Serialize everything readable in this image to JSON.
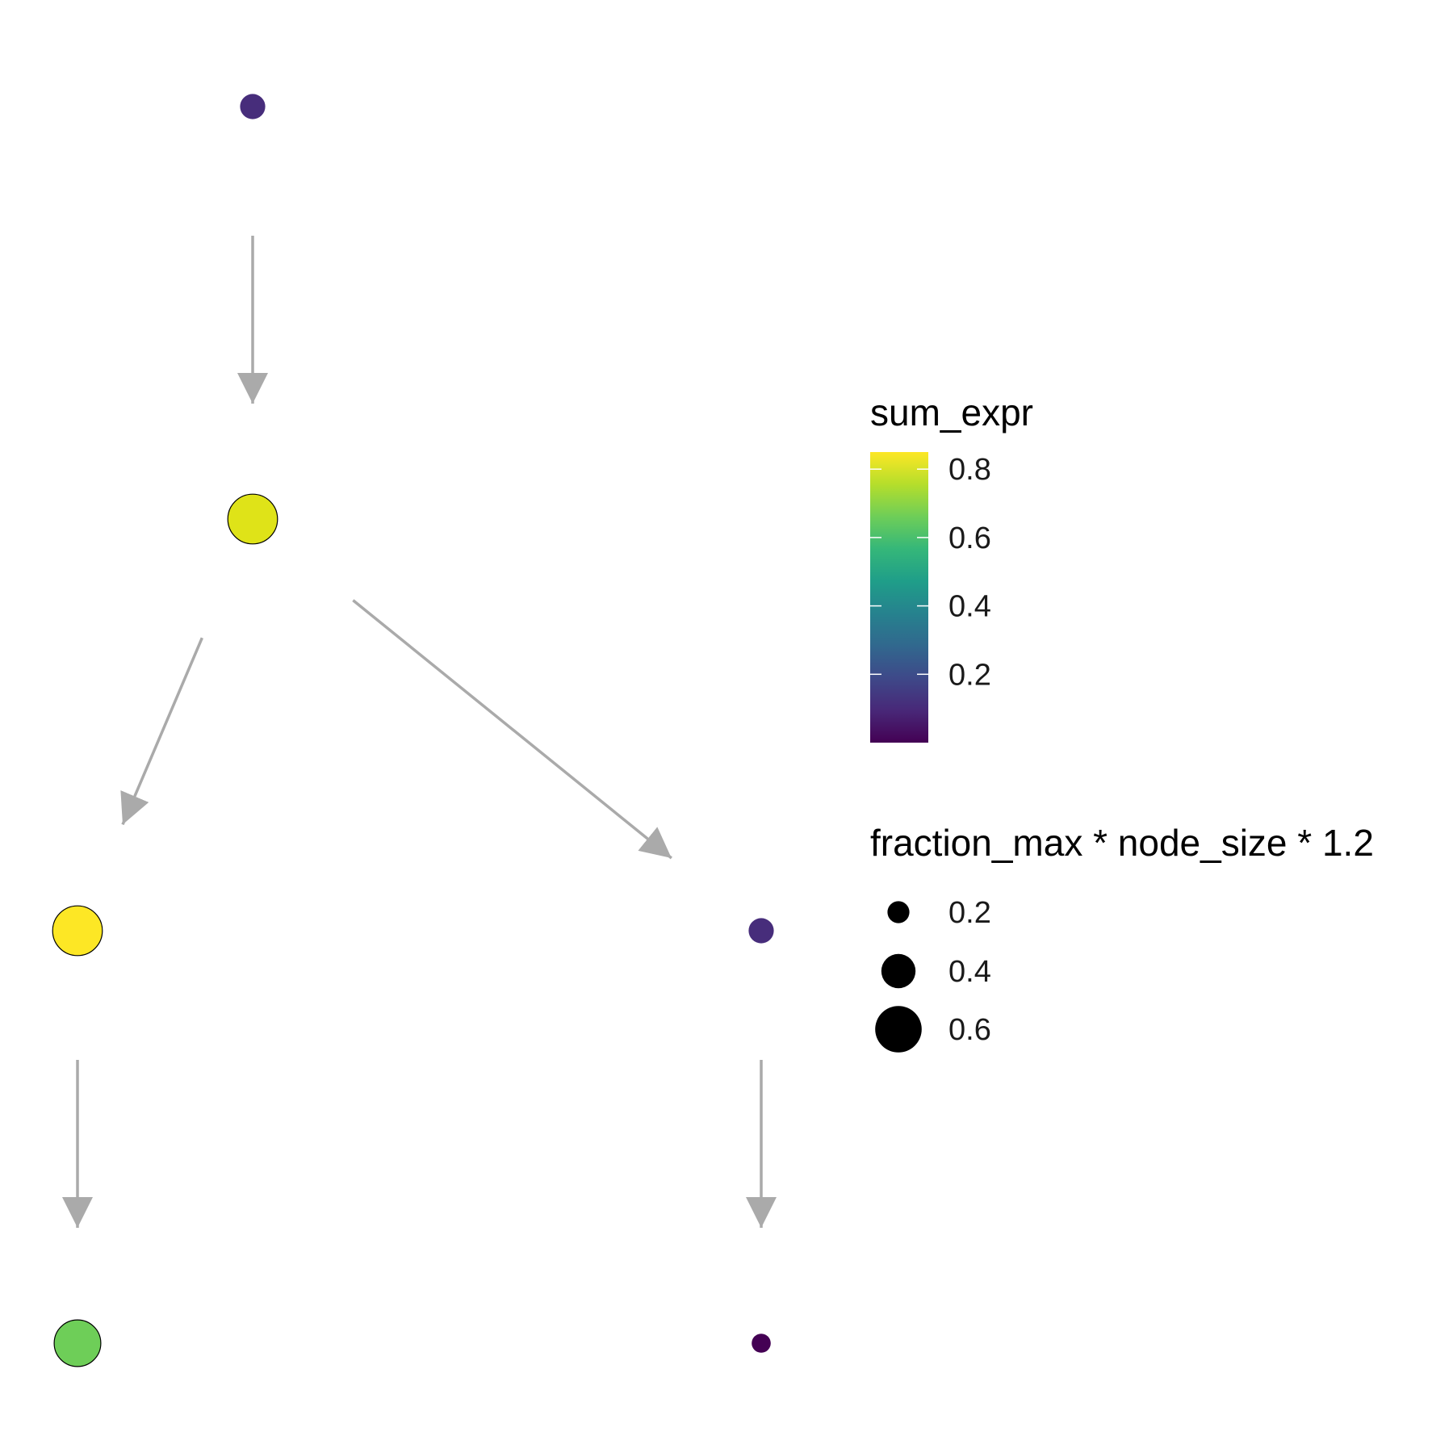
{
  "diagram": {
    "nodes": [
      {
        "id": "n1",
        "fill": "#472d7b",
        "size": 0.2,
        "outlined": false
      },
      {
        "id": "n2",
        "fill": "#dfe318",
        "size": 0.6,
        "outlined": true
      },
      {
        "id": "n3",
        "fill": "#fde725",
        "size": 0.6,
        "outlined": true
      },
      {
        "id": "n4",
        "fill": "#472d7b",
        "size": 0.2,
        "outlined": false
      },
      {
        "id": "n5",
        "fill": "#6ece58",
        "size": 0.55,
        "outlined": true
      },
      {
        "id": "n6",
        "fill": "#440154",
        "size": 0.1,
        "outlined": false
      }
    ],
    "edges": [
      {
        "from": "n1",
        "to": "n2"
      },
      {
        "from": "n2",
        "to": "n3"
      },
      {
        "from": "n2",
        "to": "n4"
      },
      {
        "from": "n3",
        "to": "n5"
      },
      {
        "from": "n4",
        "to": "n6"
      }
    ],
    "edge_color": "#aaaaaa"
  },
  "legend": {
    "color": {
      "title": "sum_expr",
      "ticks": [
        "0.8",
        "0.6",
        "0.4",
        "0.2"
      ],
      "tick_values": [
        0.8,
        0.6,
        0.4,
        0.2
      ],
      "range": [
        0.0,
        0.85
      ],
      "palette": "viridis",
      "stops": [
        "#440154",
        "#482878",
        "#3e4989",
        "#31688e",
        "#26828e",
        "#1f9e89",
        "#35b779",
        "#6ece58",
        "#b5de2b",
        "#fde725"
      ]
    },
    "size": {
      "title": "fraction_max * node_size * 1.2",
      "entries": [
        {
          "label": "0.2",
          "value": 0.2
        },
        {
          "label": "0.4",
          "value": 0.4
        },
        {
          "label": "0.6",
          "value": 0.6
        }
      ]
    }
  }
}
